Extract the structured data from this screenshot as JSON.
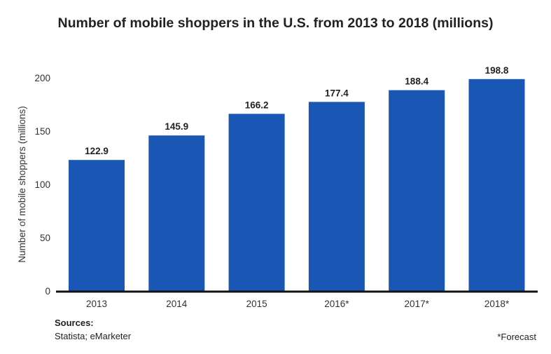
{
  "chart_data": {
    "type": "bar",
    "title": "Number of mobile shoppers in the U.S. from 2013 to 2018 (millions)",
    "xlabel": "",
    "ylabel": "Number of mobile shoppers (millions)",
    "categories": [
      "2013",
      "2014",
      "2015",
      "2016*",
      "2017*",
      "2018*"
    ],
    "values": [
      122.9,
      145.9,
      166.2,
      177.4,
      188.4,
      198.8
    ],
    "ylim": [
      0,
      200
    ],
    "yticks": [
      0,
      50,
      100,
      150,
      200
    ],
    "grid": false,
    "bar_color": "#1a56b4",
    "data_labels": true
  },
  "footer": {
    "sources_heading": "Sources:",
    "sources": "Statista; eMarketer",
    "note": "*Forecast"
  }
}
